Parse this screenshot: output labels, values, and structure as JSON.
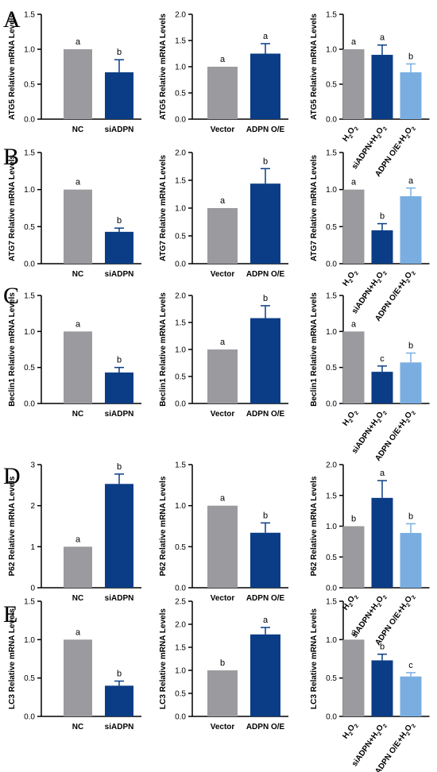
{
  "colors": {
    "gray": "#9b9b9f",
    "navy": "#0b3d86",
    "light_blue": "#7aaee0",
    "axis": "#000000"
  },
  "panel_letters": [
    "A",
    "B",
    "C",
    "D",
    "E"
  ],
  "chart_data": [
    {
      "type": "bar",
      "row": "A",
      "ylabel": "ATG5 Relative mRNA Levels",
      "ylim": [
        0,
        1.5
      ],
      "yticks": [
        "0.0",
        "0.5",
        "1.0",
        "1.5"
      ],
      "categories": [
        {
          "label": "NC"
        },
        {
          "label": "siADPN"
        }
      ],
      "values": [
        1.0,
        0.67
      ],
      "errors": [
        0,
        0.18
      ],
      "letters": [
        "a",
        "b"
      ],
      "colors": [
        "gray",
        "navy"
      ]
    },
    {
      "type": "bar",
      "row": "A",
      "ylabel": "ATG5 Relative mRNA Levels",
      "ylim": [
        0,
        2.0
      ],
      "yticks": [
        "0.0",
        "0.5",
        "1.0",
        "1.5",
        "2.0"
      ],
      "categories": [
        {
          "label": "Vector"
        },
        {
          "label": "ADPN O/E"
        }
      ],
      "values": [
        1.0,
        1.25
      ],
      "errors": [
        0,
        0.19
      ],
      "letters": [
        "a",
        "a"
      ],
      "colors": [
        "gray",
        "navy"
      ]
    },
    {
      "type": "bar",
      "row": "A",
      "ylabel": "ATG5 Relative mRNA Levels",
      "ylim": [
        0,
        1.5
      ],
      "yticks": [
        "0.0",
        "0.5",
        "1.0",
        "1.5"
      ],
      "categories": [
        {
          "label": "H2O2",
          "prefix": "H",
          "sub": "2",
          "mid": "O",
          "sub2": "2"
        },
        {
          "label": "siADPN+H2O2",
          "prefix": "siADPN+H",
          "sub": "2",
          "mid": "O",
          "sub2": "2"
        },
        {
          "label": "ADPN O/E+H2O2",
          "prefix": "ADPN O/E+H",
          "sub": "2",
          "mid": "O",
          "sub2": "2"
        }
      ],
      "values": [
        1.0,
        0.92,
        0.67
      ],
      "errors": [
        0,
        0.14,
        0.12
      ],
      "letters": [
        "a",
        "a",
        "b"
      ],
      "colors": [
        "gray",
        "navy",
        "light_blue"
      ]
    },
    {
      "type": "bar",
      "row": "B",
      "ylabel": "ATG7 Relative mRNA Levels",
      "ylim": [
        0,
        1.5
      ],
      "yticks": [
        "0.0",
        "0.5",
        "1.0",
        "1.5"
      ],
      "categories": [
        {
          "label": "NC"
        },
        {
          "label": "siADPN"
        }
      ],
      "values": [
        1.0,
        0.43
      ],
      "errors": [
        0,
        0.05
      ],
      "letters": [
        "a",
        "b"
      ],
      "colors": [
        "gray",
        "navy"
      ]
    },
    {
      "type": "bar",
      "row": "B",
      "ylabel": "ATG7 Relative mRNA Levels",
      "ylim": [
        0,
        2.0
      ],
      "yticks": [
        "0.0",
        "0.5",
        "1.0",
        "1.5",
        "2.0"
      ],
      "categories": [
        {
          "label": "Vector"
        },
        {
          "label": "ADPN O/E"
        }
      ],
      "values": [
        1.0,
        1.44
      ],
      "errors": [
        0,
        0.27
      ],
      "letters": [
        "a",
        "b"
      ],
      "colors": [
        "gray",
        "navy"
      ]
    },
    {
      "type": "bar",
      "row": "B",
      "ylabel": "ATG7 Relative mRNA Levels",
      "ylim": [
        0,
        1.5
      ],
      "yticks": [
        "0.0",
        "0.5",
        "1.0",
        "1.5"
      ],
      "categories": [
        {
          "label": "H2O2",
          "prefix": "H",
          "sub": "2",
          "mid": "O",
          "sub2": "2"
        },
        {
          "label": "siADPN+H2O2",
          "prefix": "siADPN+H",
          "sub": "2",
          "mid": "O",
          "sub2": "2"
        },
        {
          "label": "ADPN O/E+H2O2",
          "prefix": "ADPN O/E+H",
          "sub": "2",
          "mid": "O",
          "sub2": "2"
        }
      ],
      "values": [
        1.0,
        0.45,
        0.91
      ],
      "errors": [
        0,
        0.09,
        0.11
      ],
      "letters": [
        "a",
        "b",
        "a"
      ],
      "colors": [
        "gray",
        "navy",
        "light_blue"
      ]
    },
    {
      "type": "bar",
      "row": "C",
      "ylabel": "Beclin1 Relative mRNA Levels",
      "ylim": [
        0,
        1.5
      ],
      "yticks": [
        "0.0",
        "0.5",
        "1.0",
        "1.5"
      ],
      "categories": [
        {
          "label": "NC"
        },
        {
          "label": "siADPN"
        }
      ],
      "values": [
        1.0,
        0.43
      ],
      "errors": [
        0,
        0.07
      ],
      "letters": [
        "a",
        "b"
      ],
      "colors": [
        "gray",
        "navy"
      ]
    },
    {
      "type": "bar",
      "row": "C",
      "ylabel": "Beclin1 Relative mRNA Levels",
      "ylim": [
        0,
        2.0
      ],
      "yticks": [
        "0.0",
        "0.5",
        "1.0",
        "1.5",
        "2.0"
      ],
      "categories": [
        {
          "label": "Vector"
        },
        {
          "label": "ADPN O/E"
        }
      ],
      "values": [
        1.0,
        1.58
      ],
      "errors": [
        0,
        0.23
      ],
      "letters": [
        "a",
        "b"
      ],
      "colors": [
        "gray",
        "navy"
      ]
    },
    {
      "type": "bar",
      "row": "C",
      "ylabel": "Beclin1 Relative mRNA Levels",
      "ylim": [
        0,
        1.5
      ],
      "yticks": [
        "0.0",
        "0.5",
        "1.0",
        "1.5"
      ],
      "categories": [
        {
          "label": "H2O2",
          "prefix": "H",
          "sub": "2",
          "mid": "O",
          "sub2": "2"
        },
        {
          "label": "siADPN+H2O2",
          "prefix": "siADPN+H",
          "sub": "2",
          "mid": "O",
          "sub2": "2"
        },
        {
          "label": "ADPN O/E+H2O2",
          "prefix": "ADPN O/E+H",
          "sub": "2",
          "mid": "O",
          "sub2": "2"
        }
      ],
      "values": [
        1.0,
        0.44,
        0.57
      ],
      "errors": [
        0,
        0.08,
        0.13
      ],
      "letters": [
        "a",
        "c",
        "b"
      ],
      "colors": [
        "gray",
        "navy",
        "light_blue"
      ]
    },
    {
      "type": "bar",
      "row": "D",
      "ylabel": "P62 Relative mRNA Levels",
      "ylim": [
        0,
        3
      ],
      "yticks": [
        "0",
        "1",
        "2",
        "3"
      ],
      "categories": [
        {
          "label": "NC"
        },
        {
          "label": "siADPN"
        }
      ],
      "values": [
        1.0,
        2.53
      ],
      "errors": [
        0,
        0.24
      ],
      "letters": [
        "a",
        "b"
      ],
      "colors": [
        "gray",
        "navy"
      ]
    },
    {
      "type": "bar",
      "row": "D",
      "ylabel": "P62 Relative mRNA Levels",
      "ylim": [
        0,
        1.5
      ],
      "yticks": [
        "0.0",
        "0.5",
        "1.0",
        "1.5"
      ],
      "categories": [
        {
          "label": "Vector"
        },
        {
          "label": "ADPN O/E"
        }
      ],
      "values": [
        1.0,
        0.67
      ],
      "errors": [
        0,
        0.12
      ],
      "letters": [
        "a",
        "b"
      ],
      "colors": [
        "gray",
        "navy"
      ]
    },
    {
      "type": "bar",
      "row": "D",
      "ylabel": "P62 Relative mRNA Levels",
      "ylim": [
        0,
        2.0
      ],
      "yticks": [
        "0.0",
        "0.5",
        "1.0",
        "1.5",
        "2.0"
      ],
      "categories": [
        {
          "label": "H2O2",
          "prefix": "H",
          "sub": "2",
          "mid": "O",
          "sub2": "2"
        },
        {
          "label": "siADPN+H2O2",
          "prefix": "siADPN+H",
          "sub": "2",
          "mid": "O",
          "sub2": "2"
        },
        {
          "label": "ADPN O/E+H2O2",
          "prefix": "ADPN O/E+H",
          "sub": "2",
          "mid": "O",
          "sub2": "2"
        }
      ],
      "values": [
        1.0,
        1.46,
        0.89
      ],
      "errors": [
        0,
        0.28,
        0.15
      ],
      "letters": [
        "b",
        "a",
        "b"
      ],
      "colors": [
        "gray",
        "navy",
        "light_blue"
      ]
    },
    {
      "type": "bar",
      "row": "E",
      "ylabel": "LC3 Relative mRNA Levels",
      "ylim": [
        0,
        1.5
      ],
      "yticks": [
        "0.0",
        "0.5",
        "1.0",
        "1.5"
      ],
      "categories": [
        {
          "label": "NC"
        },
        {
          "label": "siADPN"
        }
      ],
      "values": [
        1.0,
        0.4
      ],
      "errors": [
        0,
        0.06
      ],
      "letters": [
        "a",
        "b"
      ],
      "colors": [
        "gray",
        "navy"
      ]
    },
    {
      "type": "bar",
      "row": "E",
      "ylabel": "LC3 Relative mRNA Levels",
      "ylim": [
        0,
        2.5
      ],
      "yticks": [
        "0.0",
        "0.5",
        "1.0",
        "1.5",
        "2.0",
        "2.5"
      ],
      "categories": [
        {
          "label": "Vector"
        },
        {
          "label": "ADPN O/E"
        }
      ],
      "values": [
        1.0,
        1.78
      ],
      "errors": [
        0,
        0.15
      ],
      "letters": [
        "b",
        "a"
      ],
      "colors": [
        "gray",
        "navy"
      ]
    },
    {
      "type": "bar",
      "row": "E",
      "ylabel": "LC3 Relative mRNA Levels",
      "ylim": [
        0,
        1.5
      ],
      "yticks": [
        "0.0",
        "0.5",
        "1.0",
        "1.5"
      ],
      "categories": [
        {
          "label": "H2O2",
          "prefix": "H",
          "sub": "2",
          "mid": "O",
          "sub2": "2"
        },
        {
          "label": "siADPN+H2O2",
          "prefix": "siADPN+H",
          "sub": "2",
          "mid": "O",
          "sub2": "2"
        },
        {
          "label": "ADPN O/E+H2O2",
          "prefix": "ADPN O/E+H",
          "sub": "2",
          "mid": "O",
          "sub2": "2"
        }
      ],
      "values": [
        1.0,
        0.73,
        0.52
      ],
      "errors": [
        0,
        0.08,
        0.05
      ],
      "letters": [
        "a",
        "b",
        "c"
      ],
      "colors": [
        "gray",
        "navy",
        "light_blue"
      ]
    }
  ]
}
